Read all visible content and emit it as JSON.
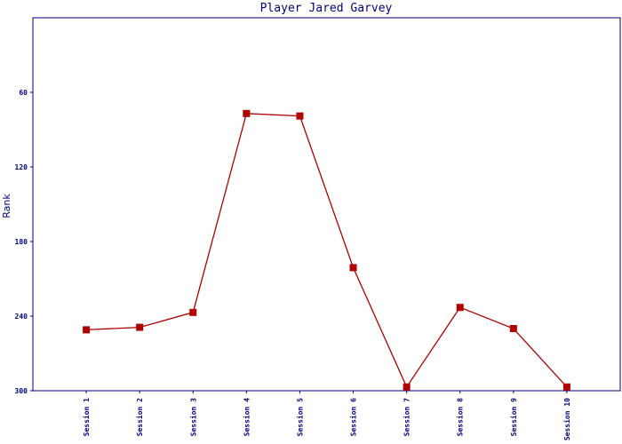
{
  "chart_data": {
    "type": "line",
    "title": "Player Jared Garvey",
    "y_label": "Rank",
    "categories": [
      "Session 1",
      "Session 2",
      "Session 3",
      "Session 4",
      "Session 5",
      "Session 6",
      "Session 7",
      "Session 8",
      "Session 9",
      "Session 10"
    ],
    "series": [
      {
        "name": "Rank",
        "color": "#b00000",
        "values": [
          251,
          249,
          237,
          77,
          79,
          201,
          297,
          233,
          250,
          297
        ]
      }
    ],
    "ylim": [
      300,
      0
    ],
    "yticks": [
      60,
      120,
      180,
      240,
      300
    ],
    "grid": false
  }
}
